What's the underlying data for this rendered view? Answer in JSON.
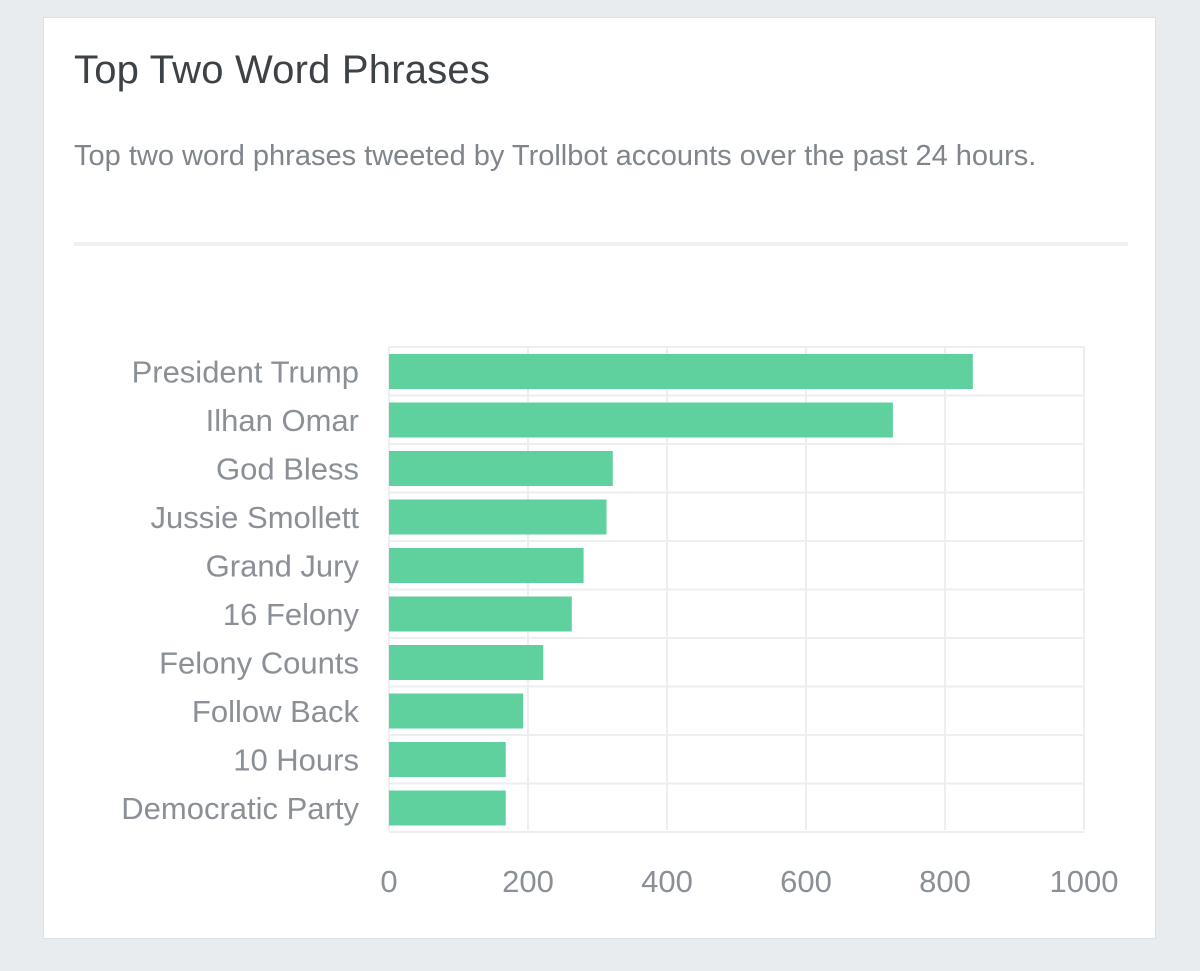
{
  "card": {
    "title": "Top Two Word Phrases",
    "subtitle": "Top two word phrases tweeted by Trollbot accounts over the past 24 hours."
  },
  "chart_data": {
    "type": "bar",
    "orientation": "horizontal",
    "title": "Top Two Word Phrases",
    "xlabel": "",
    "ylabel": "",
    "categories": [
      "President Trump",
      "Ilhan Omar",
      "God Bless",
      "Jussie Smollett",
      "Grand Jury",
      "16 Felony",
      "Felony Counts",
      "Follow Back",
      "10 Hours",
      "Democratic Party"
    ],
    "values": [
      840,
      725,
      322,
      313,
      280,
      263,
      222,
      193,
      168,
      168
    ],
    "xlim": [
      0,
      1000
    ],
    "xticks": [
      0,
      200,
      400,
      600,
      800,
      1000
    ],
    "grid": true,
    "bar_color": "#5fd19e",
    "grid_color": "#eceef0"
  }
}
